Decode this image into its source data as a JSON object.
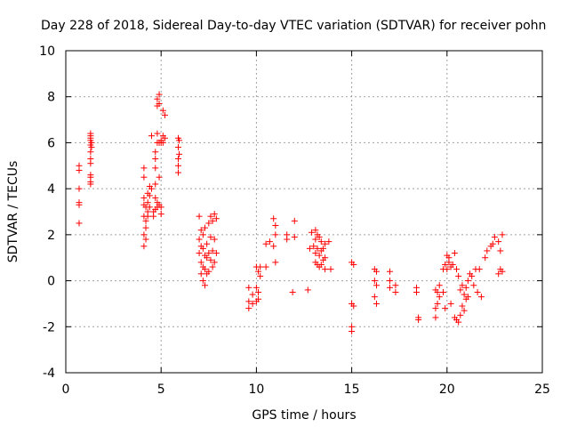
{
  "chart_data": {
    "type": "scatter",
    "title": "Day 228 of 2018, Sidereal Day-to-day VTEC variation (SDTVAR) for receiver pohn",
    "xlabel": "GPS time / hours",
    "ylabel": "SDTVAR / TECUs",
    "xlim": [
      0,
      25
    ],
    "ylim": [
      -4,
      10
    ],
    "xticks": [
      0,
      5,
      10,
      15,
      20,
      25
    ],
    "yticks": [
      -4,
      -2,
      0,
      2,
      4,
      6,
      8,
      10
    ],
    "grid": true,
    "marker": "+",
    "color": "#ff0000",
    "series": [
      {
        "name": "SDTVAR",
        "x": [
          0.7,
          0.7,
          0.7,
          0.7,
          0.7,
          0.7,
          1.3,
          1.3,
          1.3,
          1.3,
          1.3,
          1.3,
          1.3,
          1.3,
          1.3,
          1.3,
          1.3,
          1.3,
          1.35,
          1.35,
          4.1,
          4.1,
          4.1,
          4.1,
          4.1,
          4.1,
          4.1,
          4.2,
          4.2,
          4.2,
          4.2,
          4.3,
          4.3,
          4.3,
          4.3,
          4.4,
          4.4,
          4.4,
          4.5,
          4.5,
          4.6,
          4.6,
          4.7,
          4.7,
          4.7,
          4.7,
          4.7,
          4.7,
          4.8,
          4.8,
          4.8,
          4.8,
          4.8,
          4.8,
          4.9,
          4.9,
          4.9,
          4.9,
          4.9,
          5.0,
          5.0,
          5.0,
          5.0,
          5.1,
          5.1,
          5.1,
          5.2,
          5.2,
          5.9,
          5.9,
          5.9,
          5.9,
          5.9,
          5.95,
          5.95,
          7.0,
          7.0,
          7.0,
          7.1,
          7.1,
          7.1,
          7.1,
          7.2,
          7.2,
          7.2,
          7.2,
          7.3,
          7.3,
          7.3,
          7.3,
          7.4,
          7.4,
          7.4,
          7.5,
          7.5,
          7.5,
          7.6,
          7.6,
          7.6,
          7.7,
          7.7,
          7.7,
          7.8,
          7.8,
          7.8,
          7.9,
          7.9,
          9.6,
          9.6,
          9.6,
          9.8,
          9.8,
          10.0,
          10.0,
          10.0,
          10.1,
          10.1,
          10.1,
          10.2,
          10.2,
          10.5,
          10.5,
          10.7,
          10.9,
          10.9,
          11.0,
          11.0,
          11.0,
          11.6,
          11.6,
          11.9,
          12.0,
          12.0,
          12.7,
          12.8,
          12.9,
          13.0,
          13.1,
          13.1,
          13.1,
          13.1,
          13.2,
          13.2,
          13.2,
          13.3,
          13.3,
          13.3,
          13.4,
          13.4,
          13.4,
          13.5,
          13.5,
          13.6,
          13.6,
          13.6,
          13.8,
          13.9,
          15.0,
          15.0,
          15.0,
          15.0,
          15.1,
          15.1,
          16.2,
          16.2,
          16.2,
          16.3,
          16.3,
          16.3,
          17.0,
          17.0,
          17.0,
          17.3,
          17.3,
          18.4,
          18.4,
          18.5,
          18.5,
          19.4,
          19.4,
          19.4,
          19.5,
          19.5,
          19.6,
          19.6,
          19.8,
          19.8,
          19.9,
          19.9,
          20.0,
          20.0,
          20.1,
          20.1,
          20.2,
          20.2,
          20.3,
          20.4,
          20.4,
          20.5,
          20.5,
          20.6,
          20.6,
          20.7,
          20.7,
          20.8,
          20.8,
          20.9,
          20.9,
          21.0,
          21.0,
          21.1,
          21.1,
          21.2,
          21.3,
          21.4,
          21.5,
          21.6,
          21.7,
          21.8,
          22.0,
          22.1,
          22.3,
          22.4,
          22.5,
          22.7,
          22.7,
          22.8,
          22.8,
          22.9,
          22.9
        ],
        "y": [
          5.0,
          4.8,
          4.0,
          3.3,
          3.4,
          2.5,
          6.3,
          6.1,
          5.9,
          5.6,
          5.3,
          4.6,
          4.3,
          4.2,
          6.2,
          5.1,
          4.5,
          6.4,
          5.8,
          6.0,
          4.9,
          4.5,
          3.6,
          3.3,
          2.8,
          2.0,
          1.5,
          3.2,
          2.6,
          2.3,
          1.8,
          3.8,
          3.4,
          2.8,
          3.0,
          4.1,
          3.7,
          3.2,
          6.3,
          4.0,
          3.0,
          2.8,
          5.6,
          5.3,
          4.9,
          4.2,
          3.6,
          3.1,
          7.9,
          7.6,
          6.4,
          6.0,
          3.4,
          3.2,
          8.1,
          7.7,
          6.0,
          4.5,
          3.3,
          6.1,
          6.0,
          3.2,
          2.9,
          7.4,
          6.3,
          6.0,
          7.2,
          6.2,
          6.2,
          5.8,
          5.3,
          5.0,
          4.7,
          6.1,
          5.5,
          2.8,
          1.8,
          1.2,
          2.2,
          1.5,
          0.8,
          0.3,
          2.0,
          1.4,
          0.6,
          0.0,
          2.3,
          1.1,
          0.5,
          -0.2,
          1.6,
          1.0,
          0.3,
          2.5,
          1.2,
          0.4,
          2.8,
          1.9,
          0.9,
          2.6,
          1.3,
          0.6,
          2.9,
          1.8,
          0.8,
          2.7,
          1.2,
          -0.3,
          -0.9,
          -1.2,
          -0.6,
          -1.0,
          0.6,
          -0.3,
          -0.9,
          0.4,
          -0.5,
          -0.8,
          0.6,
          0.2,
          1.6,
          0.6,
          1.7,
          2.7,
          1.5,
          2.4,
          2.0,
          0.8,
          2.0,
          1.8,
          -0.5,
          2.6,
          1.9,
          -0.4,
          1.4,
          2.1,
          1.5,
          2.2,
          1.8,
          1.2,
          0.8,
          2.0,
          1.4,
          0.7,
          1.9,
          1.1,
          0.6,
          1.7,
          1.3,
          0.7,
          1.4,
          0.9,
          1.6,
          1.0,
          0.5,
          1.7,
          0.5,
          0.8,
          -1.0,
          -2.0,
          -2.2,
          0.7,
          -1.1,
          0.5,
          0.0,
          -0.7,
          0.4,
          -0.2,
          -1.0,
          0.4,
          0.0,
          -0.3,
          -0.2,
          -0.5,
          -0.3,
          -0.5,
          -1.6,
          -1.7,
          -0.4,
          -1.2,
          -1.6,
          -0.5,
          -1.0,
          -0.2,
          -0.7,
          0.5,
          -0.5,
          0.7,
          -1.2,
          1.1,
          0.5,
          1.0,
          0.8,
          0.6,
          -1.0,
          0.7,
          1.2,
          -1.6,
          0.5,
          -1.7,
          0.2,
          -1.8,
          -0.4,
          -1.5,
          -0.2,
          -1.1,
          -0.6,
          -1.3,
          -0.3,
          -0.8,
          0.0,
          -0.7,
          0.3,
          0.2,
          -0.2,
          0.5,
          -0.5,
          0.5,
          -0.7,
          1.0,
          1.3,
          1.5,
          1.6,
          1.9,
          1.7,
          0.3,
          1.3,
          0.5,
          2.0,
          0.4
        ]
      }
    ]
  }
}
